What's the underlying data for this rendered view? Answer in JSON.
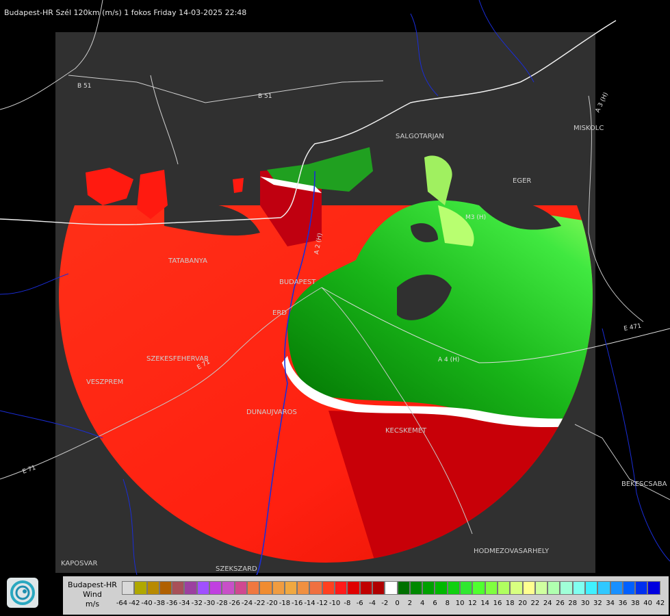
{
  "title": "Budapest-HR Szél 120km (m/s) 1 fokos Friday 14-03-2025 22:48",
  "cities": [
    {
      "name": "SALGOTARJAN"
    },
    {
      "name": "EGER"
    },
    {
      "name": "MISKOLC"
    },
    {
      "name": "TATABANYA"
    },
    {
      "name": "BUDAPEST"
    },
    {
      "name": "ERD"
    },
    {
      "name": "SZEKESFEHERVAR"
    },
    {
      "name": "VESZPREM"
    },
    {
      "name": "DUNAUJVAROS"
    },
    {
      "name": "KECSKEMET"
    },
    {
      "name": "BEKESCSABA"
    },
    {
      "name": "HODMEZOVASARHELY"
    },
    {
      "name": "KAPOSVAR"
    },
    {
      "name": "SZEKSZARD"
    }
  ],
  "roads": [
    "B 51",
    "B 51",
    "A 2 (H)",
    "M3 (H)",
    "A 3 (H)",
    "E 71",
    "E 71",
    "A 4 (H)",
    "E 471"
  ],
  "legend": {
    "label_lines": [
      "Budapest-HR",
      "Wind",
      "m/s"
    ],
    "colors": [
      "#d9d9d9",
      "#b0a800",
      "#b88a00",
      "#b06000",
      "#a85058",
      "#9c40a0",
      "#a050ff",
      "#c040e0",
      "#c850c8",
      "#d04890",
      "#f07840",
      "#f08c30",
      "#f09c40",
      "#f0a840",
      "#f09040",
      "#f07040",
      "#ff4020",
      "#ff1a1a",
      "#e00000",
      "#c00000",
      "#b00000",
      "#ffffff",
      "#007000",
      "#008800",
      "#00a000",
      "#00b800",
      "#10d010",
      "#30e830",
      "#50ff30",
      "#80ff40",
      "#b0ff60",
      "#d8ff80",
      "#ffff90",
      "#d0ffa0",
      "#b0ffb0",
      "#a0ffd8",
      "#80fff0",
      "#40f0ff",
      "#30c8ff",
      "#1890ff",
      "#0060ff",
      "#0030f0",
      "#0000e0"
    ],
    "ticks": [
      "-64",
      "-42",
      "-40",
      "-38",
      "-36",
      "-34",
      "-32",
      "-30",
      "-28",
      "-26",
      "-24",
      "-22",
      "-20",
      "-18",
      "-16",
      "-14",
      "-12",
      "-10",
      "-8",
      "-6",
      "-4",
      "-2",
      "0",
      "2",
      "4",
      "6",
      "8",
      "10",
      "12",
      "14",
      "16",
      "18",
      "20",
      "22",
      "24",
      "26",
      "28",
      "30",
      "32",
      "34",
      "36",
      "38",
      "40",
      "42"
    ]
  }
}
